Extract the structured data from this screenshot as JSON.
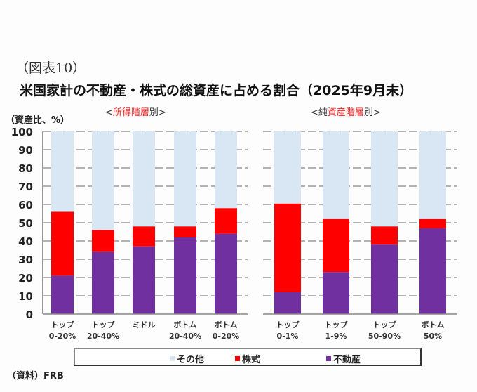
{
  "figure_label": "（図表10）",
  "chart_data": [
    {
      "type": "bar",
      "stacked": true,
      "title": "米国家計の不動産・株式の総資産に占める割合（2025年9月末）",
      "subtitle": {
        "prefix": "<",
        "highlight": "所得階層",
        "suffix": "別>"
      },
      "ylabel": "（資産比、%）",
      "ylim": [
        0,
        100
      ],
      "yticks": [
        0,
        10,
        20,
        30,
        40,
        50,
        60,
        70,
        80,
        90,
        100
      ],
      "grid": true,
      "categories": [
        {
          "line1": "トップ",
          "line2": "0-20%"
        },
        {
          "line1": "トップ",
          "line2": "20-40%"
        },
        {
          "line1": "ミドル",
          "line2": ""
        },
        {
          "line1": "ボトム",
          "line2": "20-40%"
        },
        {
          "line1": "ボトム",
          "line2": "0-20%"
        }
      ],
      "series": [
        {
          "name": "不動産",
          "color": "#7030a0",
          "values": [
            21,
            34,
            37,
            42,
            44
          ]
        },
        {
          "name": "株式",
          "color": "#ff0000",
          "values": [
            35,
            12,
            11,
            6,
            14
          ]
        },
        {
          "name": "その他",
          "color": "#d9e7f4",
          "values": [
            44,
            54,
            52,
            52,
            42
          ]
        }
      ]
    },
    {
      "type": "bar",
      "stacked": true,
      "subtitle": {
        "prefix": "<純",
        "highlight": "資産階層",
        "suffix": "別>"
      },
      "ylim": [
        0,
        100
      ],
      "grid": true,
      "categories": [
        {
          "line1": "トップ",
          "line2": "0-1%"
        },
        {
          "line1": "トップ",
          "line2": "1-9%"
        },
        {
          "line1": "トップ",
          "line2": "50-90%"
        },
        {
          "line1": "ボトム",
          "line2": "50%"
        }
      ],
      "series": [
        {
          "name": "不動産",
          "color": "#7030a0",
          "values": [
            12,
            23,
            38,
            47
          ]
        },
        {
          "name": "株式",
          "color": "#ff0000",
          "values": [
            48.5,
            29,
            10,
            5
          ]
        },
        {
          "name": "その他",
          "color": "#d9e7f4",
          "values": [
            39.5,
            48,
            52,
            48
          ]
        }
      ]
    }
  ],
  "legend": [
    {
      "label": "その他",
      "color": "#d9e7f4"
    },
    {
      "label": "株式",
      "color": "#ff0000"
    },
    {
      "label": "不動産",
      "color": "#7030a0"
    }
  ],
  "source": "（資料）FRB"
}
